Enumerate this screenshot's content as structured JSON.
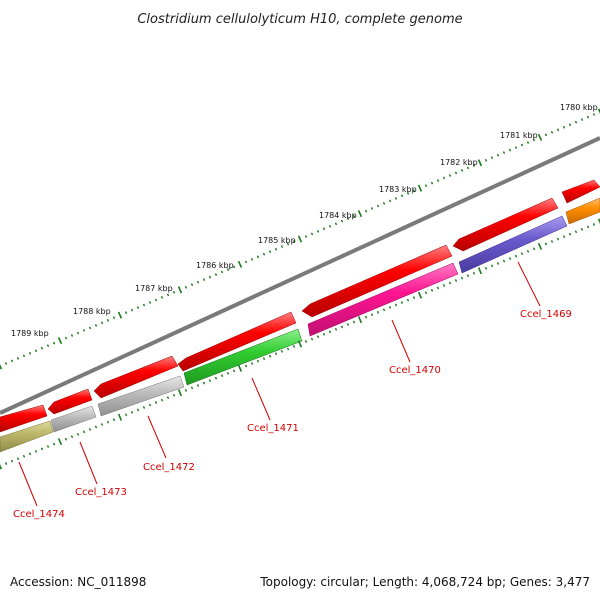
{
  "title": "Clostridium cellulolyticum H10, complete genome",
  "footer": {
    "accession": "Accession: NC_011898",
    "stats": "Topology: circular; Length: 4,068,724 bp; Genes: 3,477"
  },
  "ruler_labels": [
    "1780 kbp",
    "1781 kbp",
    "1782 kbp",
    "1783 kbp",
    "1784 kbp",
    "1785 kbp",
    "1786 kbp",
    "1787 kbp",
    "1788 kbp",
    "1789 kbp"
  ],
  "gene_labels": [
    "Ccel_1469",
    "Ccel_1470",
    "Ccel_1471",
    "Ccel_1472",
    "Ccel_1473",
    "Ccel_1474"
  ],
  "colors": {
    "backbone": "#7a7a7a",
    "arrow_red": "#ff0000",
    "gene_1469": "#6a5acd",
    "gene_1470": "#ff1493",
    "gene_1471": "#32cd32",
    "gene_1472": "#bebebe",
    "gene_1473": "#bebebe",
    "gene_1474": "#bdb76b",
    "gene_orange": "#ff8c00",
    "tick_green": "#1a7a1a",
    "label_red": "#d40000"
  }
}
